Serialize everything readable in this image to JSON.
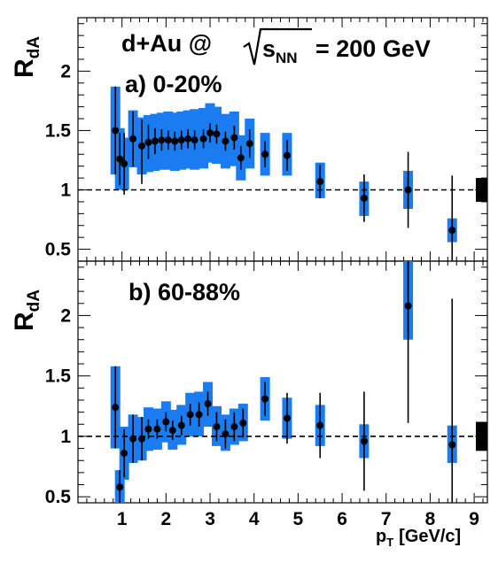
{
  "colors": {
    "sys_box": "#1a7cf0",
    "marker": "#000000",
    "norm_box": "#000000"
  },
  "header": {
    "system": "d+Au @",
    "energy_symbol": "s",
    "energy_sub": "NN",
    "energy_value": "= 200 GeV"
  },
  "chart_data": [
    {
      "type": "scatter",
      "panel_label": "a) 0-20%",
      "ylabel_main": "R",
      "ylabel_sub": "dA",
      "xlabel_main": "p",
      "xlabel_sub": "T",
      "xlabel_rest": "[GeV/c]",
      "xlim": [
        0,
        9.3
      ],
      "ylim": [
        0.4,
        2.45
      ],
      "yticks": [
        0.5,
        1,
        1.5,
        2
      ],
      "ytick_labels": [
        "0.5",
        "1",
        "1.5",
        "2"
      ],
      "xticks": [
        1,
        2,
        3,
        4,
        5,
        6,
        7,
        8,
        9
      ],
      "xtick_labels": [
        "",
        "",
        "",
        "",
        "",
        "",
        "",
        "",
        ""
      ],
      "reference_line": 1,
      "normalization_box": {
        "x": 9.3,
        "y": 1.0,
        "half_height": 0.1
      },
      "points": [
        {
          "x": 0.85,
          "y": 1.5,
          "stat_lo": 1.13,
          "stat_hi": 1.87,
          "sys_lo": 1.13,
          "sys_hi": 1.87
        },
        {
          "x": 0.95,
          "y": 1.26,
          "stat_lo": 1.04,
          "stat_hi": 1.48,
          "sys_lo": 1.0,
          "sys_hi": 1.52
        },
        {
          "x": 1.05,
          "y": 1.22,
          "stat_lo": 0.96,
          "stat_hi": 1.48,
          "sys_lo": 1.0,
          "sys_hi": 1.44
        },
        {
          "x": 1.25,
          "y": 1.43,
          "stat_lo": 1.2,
          "stat_hi": 1.66,
          "sys_lo": 1.19,
          "sys_hi": 1.67
        },
        {
          "x": 1.45,
          "y": 1.37,
          "stat_lo": 1.05,
          "stat_hi": 1.59,
          "sys_lo": 1.13,
          "sys_hi": 1.61
        },
        {
          "x": 1.6,
          "y": 1.4,
          "stat_lo": 1.26,
          "stat_hi": 1.55,
          "sys_lo": 1.15,
          "sys_hi": 1.63
        },
        {
          "x": 1.75,
          "y": 1.41,
          "stat_lo": 1.3,
          "stat_hi": 1.52,
          "sys_lo": 1.16,
          "sys_hi": 1.64
        },
        {
          "x": 1.9,
          "y": 1.42,
          "stat_lo": 1.33,
          "stat_hi": 1.51,
          "sys_lo": 1.17,
          "sys_hi": 1.65
        },
        {
          "x": 2.05,
          "y": 1.42,
          "stat_lo": 1.34,
          "stat_hi": 1.5,
          "sys_lo": 1.17,
          "sys_hi": 1.66
        },
        {
          "x": 2.2,
          "y": 1.41,
          "stat_lo": 1.33,
          "stat_hi": 1.49,
          "sys_lo": 1.16,
          "sys_hi": 1.65
        },
        {
          "x": 2.35,
          "y": 1.42,
          "stat_lo": 1.34,
          "stat_hi": 1.5,
          "sys_lo": 1.17,
          "sys_hi": 1.66
        },
        {
          "x": 2.5,
          "y": 1.43,
          "stat_lo": 1.35,
          "stat_hi": 1.51,
          "sys_lo": 1.18,
          "sys_hi": 1.67
        },
        {
          "x": 2.65,
          "y": 1.42,
          "stat_lo": 1.34,
          "stat_hi": 1.5,
          "sys_lo": 1.17,
          "sys_hi": 1.68
        },
        {
          "x": 2.85,
          "y": 1.43,
          "stat_lo": 1.35,
          "stat_hi": 1.51,
          "sys_lo": 1.18,
          "sys_hi": 1.69
        },
        {
          "x": 3.0,
          "y": 1.48,
          "stat_lo": 1.4,
          "stat_hi": 1.56,
          "sys_lo": 1.23,
          "sys_hi": 1.73
        },
        {
          "x": 3.15,
          "y": 1.47,
          "stat_lo": 1.39,
          "stat_hi": 1.55,
          "sys_lo": 1.22,
          "sys_hi": 1.7
        },
        {
          "x": 3.35,
          "y": 1.41,
          "stat_lo": 1.33,
          "stat_hi": 1.49,
          "sys_lo": 1.18,
          "sys_hi": 1.64
        },
        {
          "x": 3.55,
          "y": 1.44,
          "stat_lo": 1.34,
          "stat_hi": 1.54,
          "sys_lo": 1.2,
          "sys_hi": 1.66
        },
        {
          "x": 3.7,
          "y": 1.27,
          "stat_lo": 1.17,
          "stat_hi": 1.37,
          "sys_lo": 1.08,
          "sys_hi": 1.46
        },
        {
          "x": 3.9,
          "y": 1.39,
          "stat_lo": 1.27,
          "stat_hi": 1.51,
          "sys_lo": 1.18,
          "sys_hi": 1.6
        },
        {
          "x": 4.25,
          "y": 1.3,
          "stat_lo": 1.19,
          "stat_hi": 1.41,
          "sys_lo": 1.12,
          "sys_hi": 1.48
        },
        {
          "x": 4.75,
          "y": 1.29,
          "stat_lo": 1.16,
          "stat_hi": 1.42,
          "sys_lo": 1.12,
          "sys_hi": 1.48
        },
        {
          "x": 5.5,
          "y": 1.07,
          "stat_lo": 0.93,
          "stat_hi": 1.21,
          "sys_lo": 0.93,
          "sys_hi": 1.23
        },
        {
          "x": 6.5,
          "y": 0.93,
          "stat_lo": 0.73,
          "stat_hi": 1.13,
          "sys_lo": 0.78,
          "sys_hi": 1.07
        },
        {
          "x": 7.5,
          "y": 1.0,
          "stat_lo": 0.68,
          "stat_hi": 1.32,
          "sys_lo": 0.84,
          "sys_hi": 1.16
        },
        {
          "x": 8.5,
          "y": 0.66,
          "stat_lo": 0.4,
          "stat_hi": 1.12,
          "sys_lo": 0.56,
          "sys_hi": 0.76
        }
      ]
    },
    {
      "type": "scatter",
      "panel_label": "b) 60-88%",
      "ylabel_main": "R",
      "ylabel_sub": "dA",
      "xlabel_main": "p",
      "xlabel_sub": "T",
      "xlabel_rest": "[GeV/c]",
      "xlim": [
        0,
        9.3
      ],
      "ylim": [
        0.45,
        2.45
      ],
      "yticks": [
        0.5,
        1,
        1.5,
        2
      ],
      "ytick_labels": [
        "0.5",
        "1",
        "1.5",
        "2"
      ],
      "xticks": [
        1,
        2,
        3,
        4,
        5,
        6,
        7,
        8,
        9
      ],
      "xtick_labels": [
        "1",
        "2",
        "3",
        "4",
        "5",
        "6",
        "7",
        "8",
        "9"
      ],
      "reference_line": 1,
      "normalization_box": {
        "x": 9.3,
        "y": 1.0,
        "half_height": 0.12
      },
      "points": [
        {
          "x": 0.85,
          "y": 1.24,
          "stat_lo": 0.9,
          "stat_hi": 1.58,
          "sys_lo": 0.9,
          "sys_hi": 1.58
        },
        {
          "x": 0.95,
          "y": 0.58,
          "stat_lo": 0.45,
          "stat_hi": 0.72,
          "sys_lo": 0.45,
          "sys_hi": 0.72
        },
        {
          "x": 1.05,
          "y": 0.86,
          "stat_lo": 0.66,
          "stat_hi": 1.06,
          "sys_lo": 0.64,
          "sys_hi": 1.08
        },
        {
          "x": 1.25,
          "y": 0.98,
          "stat_lo": 0.78,
          "stat_hi": 1.18,
          "sys_lo": 0.78,
          "sys_hi": 1.18
        },
        {
          "x": 1.45,
          "y": 0.98,
          "stat_lo": 0.8,
          "stat_hi": 1.16,
          "sys_lo": 0.8,
          "sys_hi": 1.16
        },
        {
          "x": 1.6,
          "y": 1.06,
          "stat_lo": 0.98,
          "stat_hi": 1.14,
          "sys_lo": 0.88,
          "sys_hi": 1.24
        },
        {
          "x": 1.8,
          "y": 1.06,
          "stat_lo": 0.98,
          "stat_hi": 1.14,
          "sys_lo": 0.89,
          "sys_hi": 1.23
        },
        {
          "x": 2.0,
          "y": 1.12,
          "stat_lo": 1.04,
          "stat_hi": 1.2,
          "sys_lo": 0.95,
          "sys_hi": 1.29
        },
        {
          "x": 2.15,
          "y": 1.05,
          "stat_lo": 0.97,
          "stat_hi": 1.13,
          "sys_lo": 0.89,
          "sys_hi": 1.22
        },
        {
          "x": 2.35,
          "y": 1.09,
          "stat_lo": 1.01,
          "stat_hi": 1.17,
          "sys_lo": 0.93,
          "sys_hi": 1.26
        },
        {
          "x": 2.55,
          "y": 1.18,
          "stat_lo": 1.09,
          "stat_hi": 1.27,
          "sys_lo": 1.0,
          "sys_hi": 1.36
        },
        {
          "x": 2.75,
          "y": 1.18,
          "stat_lo": 1.08,
          "stat_hi": 1.28,
          "sys_lo": 1.0,
          "sys_hi": 1.37
        },
        {
          "x": 2.95,
          "y": 1.27,
          "stat_lo": 1.17,
          "stat_hi": 1.37,
          "sys_lo": 1.08,
          "sys_hi": 1.45
        },
        {
          "x": 3.15,
          "y": 1.08,
          "stat_lo": 0.96,
          "stat_hi": 1.2,
          "sys_lo": 0.92,
          "sys_hi": 1.25
        },
        {
          "x": 3.35,
          "y": 1.02,
          "stat_lo": 0.9,
          "stat_hi": 1.14,
          "sys_lo": 0.88,
          "sys_hi": 1.18
        },
        {
          "x": 3.55,
          "y": 1.08,
          "stat_lo": 0.96,
          "stat_hi": 1.2,
          "sys_lo": 0.93,
          "sys_hi": 1.23
        },
        {
          "x": 3.75,
          "y": 1.11,
          "stat_lo": 0.99,
          "stat_hi": 1.23,
          "sys_lo": 0.96,
          "sys_hi": 1.27
        },
        {
          "x": 4.25,
          "y": 1.31,
          "stat_lo": 1.17,
          "stat_hi": 1.45,
          "sys_lo": 1.13,
          "sys_hi": 1.49
        },
        {
          "x": 4.75,
          "y": 1.15,
          "stat_lo": 0.94,
          "stat_hi": 1.36,
          "sys_lo": 0.98,
          "sys_hi": 1.32
        },
        {
          "x": 5.5,
          "y": 1.09,
          "stat_lo": 0.82,
          "stat_hi": 1.36,
          "sys_lo": 0.92,
          "sys_hi": 1.26
        },
        {
          "x": 6.5,
          "y": 0.96,
          "stat_lo": 0.55,
          "stat_hi": 1.37,
          "sys_lo": 0.82,
          "sys_hi": 1.1
        },
        {
          "x": 7.5,
          "y": 2.08,
          "stat_lo": 1.11,
          "stat_hi": 2.45,
          "sys_lo": 1.8,
          "sys_hi": 2.45
        },
        {
          "x": 8.5,
          "y": 0.93,
          "stat_lo": 0.45,
          "stat_hi": 2.14,
          "sys_lo": 0.78,
          "sys_hi": 1.09
        }
      ]
    }
  ]
}
